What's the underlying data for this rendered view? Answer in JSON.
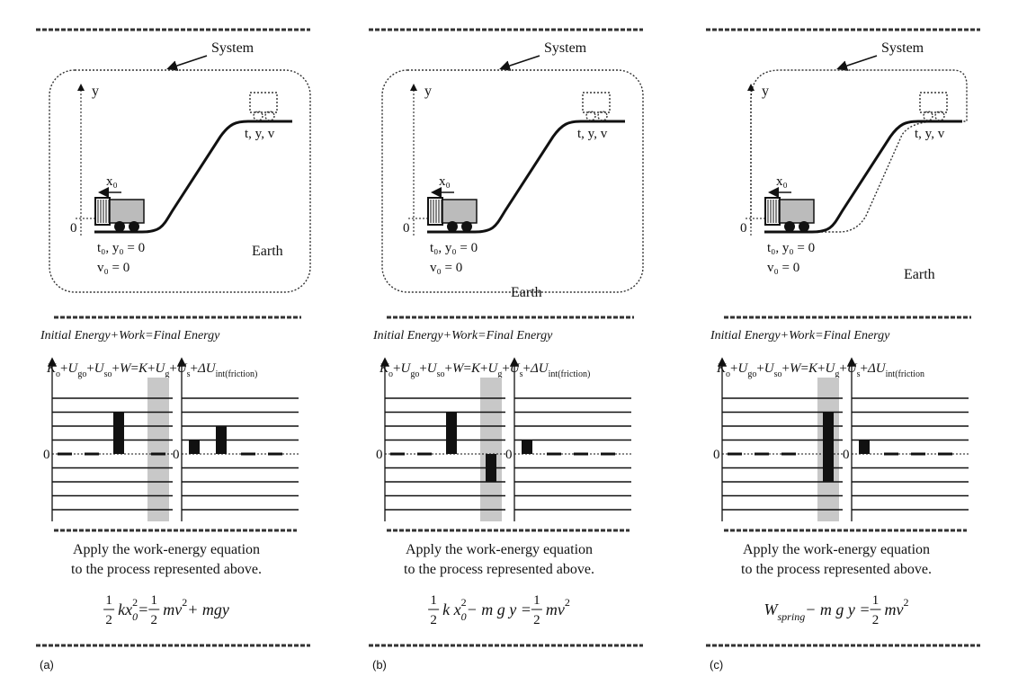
{
  "panels": [
    {
      "label": "(a)",
      "system": "System",
      "y_axis": "y",
      "x0": "x₀",
      "origin": "0",
      "final_state": "t, y, v",
      "initial_state": "t₀, y₀ = 0",
      "initial_velocity": "v₀ = 0",
      "earth": "Earth",
      "heading": "Initial Energy+Work=Final Energy",
      "equation": [
        {
          "t": "K",
          "sub": "o"
        },
        {
          "t": "+"
        },
        {
          "t": "U",
          "sub": "go"
        },
        {
          "t": "+"
        },
        {
          "t": "U",
          "sub": "so"
        },
        {
          "t": "+"
        },
        {
          "t": "W"
        },
        {
          "t": " = "
        },
        {
          "t": "K"
        },
        {
          "t": "+ "
        },
        {
          "t": "U",
          "sub": "g"
        },
        {
          "t": "+"
        },
        {
          "t": "U",
          "sub": "s"
        },
        {
          "t": "+"
        },
        {
          "t": "ΔU",
          "sub": "int(friction)"
        }
      ],
      "zero_label": "0",
      "initial_bars": [
        [
          0
        ],
        [
          0
        ],
        [
          3
        ],
        [
          0
        ]
      ],
      "final_bars": [
        [
          1
        ],
        [
          2
        ],
        [
          0
        ],
        [
          0
        ]
      ],
      "instruction": [
        "Apply the work-energy equation",
        "to the process represented above."
      ],
      "result": [
        {
          "frac": [
            "1",
            "2"
          ]
        },
        {
          "t": "kx",
          "sub": "0",
          "sup": "2"
        },
        {
          "t": " = "
        },
        {
          "frac": [
            "1",
            "2"
          ]
        },
        {
          "t": "mv",
          "sup": "2"
        },
        {
          "t": " + mgy"
        }
      ]
    },
    {
      "label": "(b)",
      "system": "System",
      "y_axis": "y",
      "x0": "x₀",
      "origin": "0",
      "final_state": "t, y, v",
      "initial_state": "t₀, y₀ = 0",
      "initial_velocity": "v₀ = 0",
      "earth": "Earth",
      "heading": "Initial Energy+Work=Final Energy",
      "equation": [
        {
          "t": "K",
          "sub": "o"
        },
        {
          "t": "+"
        },
        {
          "t": "U",
          "sub": "go"
        },
        {
          "t": "+"
        },
        {
          "t": "U",
          "sub": "so"
        },
        {
          "t": "+"
        },
        {
          "t": "W"
        },
        {
          "t": " = "
        },
        {
          "t": "K"
        },
        {
          "t": "+ "
        },
        {
          "t": "U",
          "sub": "g"
        },
        {
          "t": "+"
        },
        {
          "t": "U",
          "sub": "s"
        },
        {
          "t": "+"
        },
        {
          "t": "ΔU",
          "sub": "int(friction)"
        }
      ],
      "zero_label": "0",
      "initial_bars": [
        [
          0
        ],
        [
          0
        ],
        [
          3
        ],
        [
          -2
        ]
      ],
      "final_bars": [
        [
          1
        ],
        [
          0
        ],
        [
          0
        ],
        [
          0
        ]
      ],
      "instruction": [
        "Apply the work-energy equation",
        "to the process represented above."
      ],
      "result": [
        {
          "frac": [
            "1",
            "2"
          ]
        },
        {
          "t": "k x",
          "sub": "0",
          "sup": "2"
        },
        {
          "t": " − m g y = "
        },
        {
          "frac": [
            "1",
            "2"
          ]
        },
        {
          "t": "mv",
          "sup": "2"
        }
      ]
    },
    {
      "label": "(c)",
      "system": "System",
      "y_axis": "y",
      "x0": "x₀",
      "origin": "0",
      "final_state": "t, y, v",
      "initial_state": "t₀, y₀ = 0",
      "initial_velocity": "v₀ = 0",
      "earth": "Earth",
      "heading": "Initial Energy+Work=Final Energy",
      "equation": [
        {
          "t": "K",
          "sub": "o"
        },
        {
          "t": "+"
        },
        {
          "t": "U",
          "sub": "go"
        },
        {
          "t": "+"
        },
        {
          "t": "U",
          "sub": "so"
        },
        {
          "t": "+"
        },
        {
          "t": "W"
        },
        {
          "t": " = "
        },
        {
          "t": "K"
        },
        {
          "t": "+ "
        },
        {
          "t": "U",
          "sub": "g"
        },
        {
          "t": "+"
        },
        {
          "t": "U",
          "sub": "s"
        },
        {
          "t": "+"
        },
        {
          "t": "ΔU",
          "sub": "int(friction"
        }
      ],
      "zero_label": "0",
      "initial_bars": [
        [
          0
        ],
        [
          0
        ],
        [
          0
        ],
        [
          3,
          -2
        ]
      ],
      "final_bars": [
        [
          1
        ],
        [
          0
        ],
        [
          0
        ],
        [
          0
        ]
      ],
      "instruction": [
        "Apply the work-energy equation",
        "to the process represented above."
      ],
      "result": [
        {
          "t": "W",
          "sub": "spring"
        },
        {
          "t": " − m g y = "
        },
        {
          "frac": [
            "1",
            "2"
          ]
        },
        {
          "t": "mv",
          "sup": "2"
        }
      ]
    }
  ]
}
